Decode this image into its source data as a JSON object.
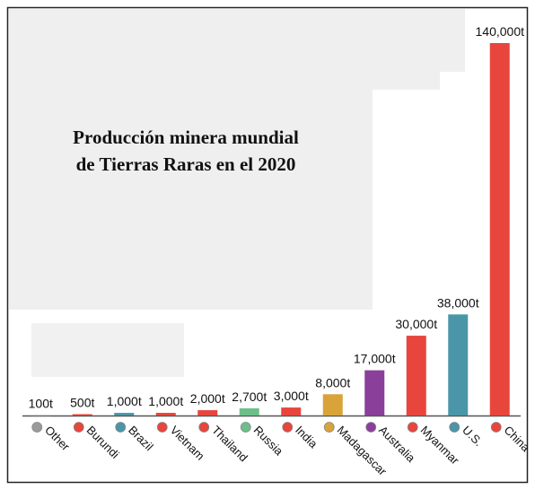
{
  "chart_data": {
    "type": "bar",
    "title": [
      "Producción minera mundial",
      "de Tierras Raras en el 2020"
    ],
    "categories": [
      "Other",
      "Burundi",
      "Brazil",
      "Vietnam",
      "Thailand",
      "Russia",
      "India",
      "Madagascar",
      "Australia",
      "Myanmar",
      "U.S.",
      "China"
    ],
    "values": [
      100,
      500,
      1000,
      1000,
      2000,
      2700,
      3000,
      8000,
      17000,
      30000,
      38000,
      140000
    ],
    "value_labels": [
      "100t",
      "500t",
      "1,000t",
      "1,000t",
      "2,000t",
      "2,700t",
      "3,000t",
      "8,000t",
      "17,000t",
      "30,000t",
      "38,000t",
      "140,000t"
    ],
    "colors": [
      "#9a9a9a",
      "#e8453c",
      "#4a96a8",
      "#e8453c",
      "#e8453c",
      "#6dbf8a",
      "#e8453c",
      "#d9a23a",
      "#8a3f9a",
      "#e8453c",
      "#4a96a8",
      "#e8453c"
    ],
    "ylim": [
      0,
      140000
    ]
  }
}
